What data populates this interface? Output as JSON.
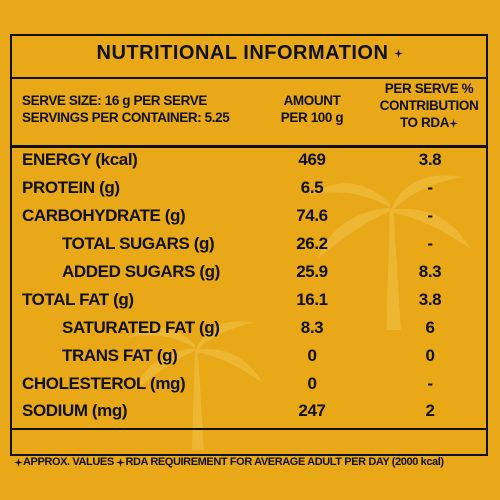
{
  "title": "NUTRITIONAL INFORMATION",
  "header": {
    "serve_info": [
      "SERVE SIZE: 16 g  PER SERVE",
      "SERVINGS PER CONTAINER: 5.25"
    ],
    "amount": [
      "AMOUNT",
      "PER 100 g"
    ],
    "rda": [
      "PER SERVE %",
      "CONTRIBUTION",
      "TO RDA"
    ]
  },
  "table": {
    "rows": [
      [
        "ENERGY (kcal)",
        "469",
        "3.8"
      ],
      [
        "PROTEIN (g)",
        "6.5",
        "-"
      ],
      [
        "CARBOHYDRATE (g)",
        "74.6",
        "-"
      ],
      [
        "TOTAL SUGARS (g)",
        "26.2",
        "-"
      ],
      [
        "ADDED SUGARS (g)",
        "25.9",
        "8.3"
      ],
      [
        "TOTAL FAT (g)",
        "16.1",
        "3.8"
      ],
      [
        "SATURATED FAT (g)",
        "8.3",
        "6"
      ],
      [
        "TRANS FAT (g)",
        "0",
        "0"
      ],
      [
        "CHOLESTEROL (mg)",
        "0",
        "-"
      ],
      [
        "SODIUM (mg)",
        "247",
        "2"
      ]
    ]
  },
  "footer": [
    "APPROX. VALUES",
    "RDA REQUIREMENT FOR AVERAGE ADULT PER DAY (2000 kcal)"
  ]
}
